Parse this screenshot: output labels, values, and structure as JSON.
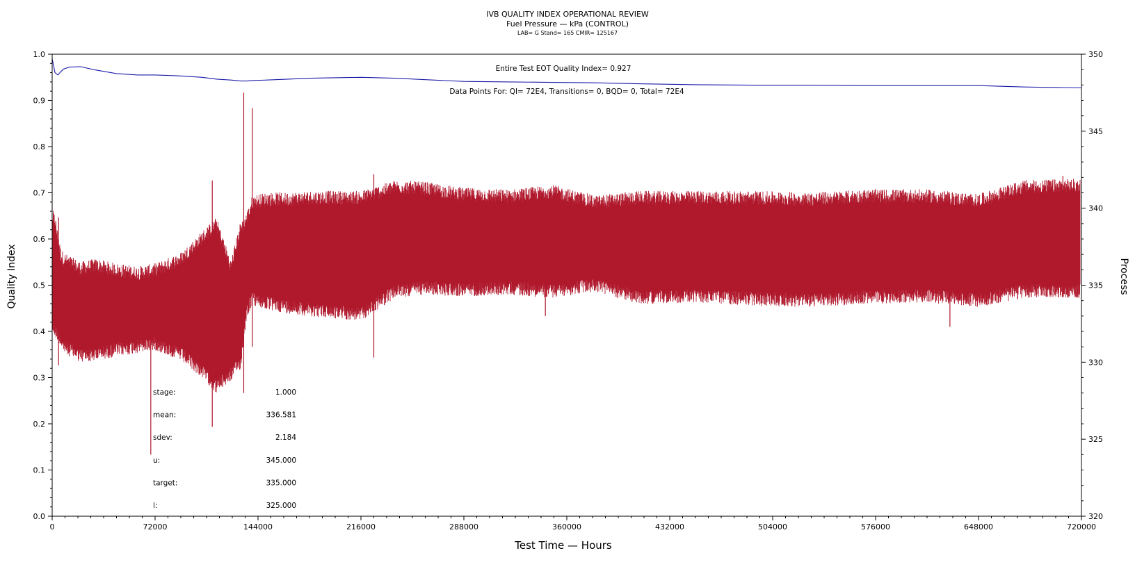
{
  "header": {
    "title": "IVB QUALITY INDEX OPERATIONAL REVIEW",
    "subtitle": "Fuel Pressure — kPa (CONTROL)",
    "lab_line": "LAB= G Stand= 165 CMIR= 125167"
  },
  "annotations": {
    "qi_summary": "Entire Test EOT Quality Index=   0.927",
    "data_points": "Data Points For: QI=  72E4, Transitions=      0, BQD=      0, Total=  72E4"
  },
  "stats": [
    {
      "label": "stage:",
      "value": "1.000"
    },
    {
      "label": "mean:",
      "value": "336.581"
    },
    {
      "label": "sdev:",
      "value": "2.184"
    },
    {
      "label": "u:",
      "value": "345.000"
    },
    {
      "label": "target:",
      "value": "335.000"
    },
    {
      "label": "l:",
      "value": "325.000"
    }
  ],
  "colors": {
    "process": "#b0182c",
    "quality_index": "#1a1aa8",
    "axis": "#000000"
  },
  "chart_data": {
    "type": "line",
    "x": [
      0,
      2000,
      4000,
      6000,
      8000,
      12000,
      20000,
      30000,
      45000,
      60000,
      72000,
      90000,
      105000,
      115000,
      125000,
      132000,
      136000,
      140000,
      150000,
      165000,
      180000,
      216000,
      240000,
      260000,
      288000,
      320000,
      350000,
      380000,
      410000,
      450000,
      490000,
      530000,
      570000,
      610000,
      648000,
      680000,
      720000
    ],
    "xlabel": "Test Time — Hours",
    "xlim": [
      0,
      720000
    ],
    "xticks": [
      0,
      72000,
      144000,
      216000,
      288000,
      360000,
      432000,
      504000,
      576000,
      648000,
      720000
    ],
    "ylabel_left": "Quality Index",
    "ylim_left": [
      0.0,
      1.0
    ],
    "yticks_left": [
      0.0,
      0.1,
      0.2,
      0.3,
      0.4,
      0.5,
      0.6,
      0.7,
      0.8,
      0.9,
      1.0
    ],
    "ylabel_right": "Process",
    "ylim_right": [
      320,
      350
    ],
    "yticks_right": [
      320,
      325,
      330,
      335,
      340,
      345,
      350
    ],
    "grid": false,
    "series": [
      {
        "axis": "left",
        "values": [
          0.99,
          0.96,
          0.955,
          0.962,
          0.968,
          0.972,
          0.973,
          0.966,
          0.958,
          0.955,
          0.955,
          0.953,
          0.95,
          0.946,
          0.944,
          0.942,
          0.942,
          0.943,
          0.944,
          0.946,
          0.948,
          0.95,
          0.948,
          0.945,
          0.941,
          0.94,
          0.939,
          0.938,
          0.936,
          0.934,
          0.933,
          0.933,
          0.932,
          0.932,
          0.932,
          0.929,
          0.927
        ]
      },
      {
        "axis": "right",
        "band_low": [
          332.5,
          332.2,
          332.0,
          331.6,
          331.2,
          331.0,
          330.6,
          330.7,
          331.0,
          331.2,
          331.4,
          330.7,
          329.6,
          328.6,
          329.4,
          330.2,
          333.5,
          334.3,
          334.0,
          333.8,
          333.6,
          333.3,
          334.8,
          335.0,
          334.9,
          335.0,
          334.8,
          335.2,
          334.4,
          334.5,
          334.3,
          334.2,
          334.4,
          334.5,
          334.2,
          334.8,
          334.8
        ],
        "band_high": [
          339.3,
          339.0,
          337.8,
          336.8,
          336.5,
          336.3,
          335.9,
          336.1,
          335.8,
          335.6,
          335.8,
          336.5,
          337.9,
          338.8,
          336.0,
          338.6,
          339.1,
          340.2,
          340.4,
          340.4,
          340.5,
          340.5,
          341.2,
          341.1,
          340.7,
          340.6,
          340.9,
          340.2,
          340.5,
          340.5,
          340.5,
          340.4,
          340.6,
          340.6,
          340.3,
          341.2,
          341.3
        ],
        "spikes": [
          {
            "x": 4500,
            "low": 329.8,
            "high": 339.4
          },
          {
            "x": 69000,
            "low": 324.0,
            "high": 334.1
          },
          {
            "x": 112000,
            "low": 325.8,
            "high": 341.8
          },
          {
            "x": 134000,
            "low": 328.0,
            "high": 347.5
          },
          {
            "x": 140000,
            "low": 331.0,
            "high": 346.5
          },
          {
            "x": 150000,
            "low": 333.5,
            "high": 338.7
          },
          {
            "x": 225000,
            "low": 330.3,
            "high": 342.2
          },
          {
            "x": 345000,
            "low": 333.0,
            "high": 341.1
          },
          {
            "x": 628000,
            "low": 332.3,
            "high": 340.5
          },
          {
            "x": 707000,
            "low": 334.3,
            "high": 342.1
          }
        ]
      }
    ]
  }
}
